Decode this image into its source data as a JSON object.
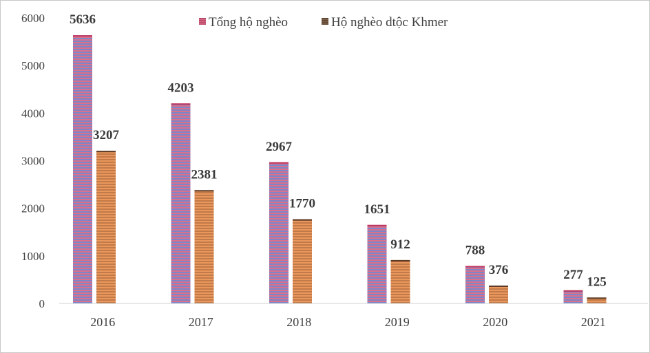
{
  "chart_data": {
    "type": "bar",
    "categories": [
      "2016",
      "2017",
      "2018",
      "2019",
      "2020",
      "2021"
    ],
    "series": [
      {
        "name": "Tổng hộ nghèo",
        "values": [
          5636,
          4203,
          2967,
          1651,
          788,
          277
        ],
        "color": "#c44a6a"
      },
      {
        "name": "Hộ nghèo dtộc Khmer",
        "values": [
          3207,
          2381,
          1770,
          912,
          376,
          125
        ],
        "color": "#d07a3c"
      }
    ],
    "ylim": [
      0,
      6000
    ],
    "yticks": [
      "0",
      "1000",
      "2000",
      "3000",
      "4000",
      "5000",
      "6000"
    ],
    "grid": false,
    "legend": "top-center",
    "data_labels": true
  }
}
